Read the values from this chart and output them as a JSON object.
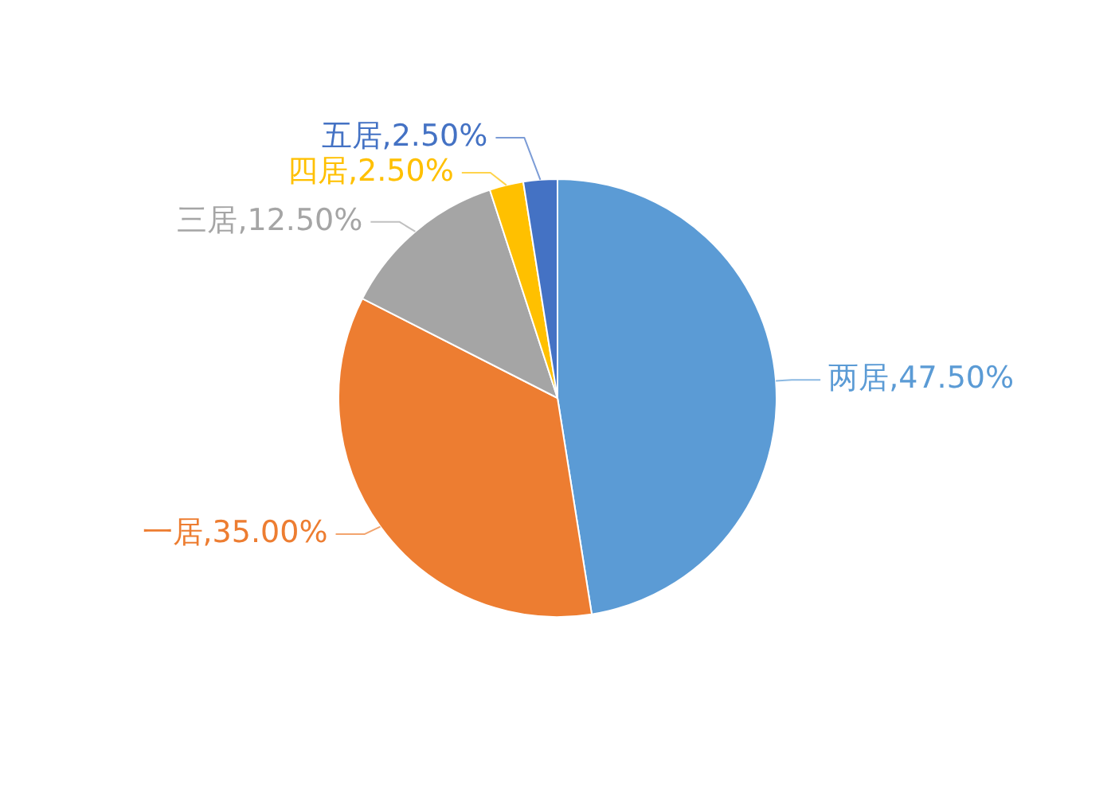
{
  "chart_data": {
    "type": "pie",
    "categories": [
      "两居",
      "一居",
      "三居",
      "四居",
      "五居"
    ],
    "values": [
      47.5,
      35,
      12.5,
      2.5,
      2.5
    ],
    "value_labels": [
      "47.50%",
      "35.00%",
      "12.50%",
      "2.50%",
      "2.50%"
    ],
    "colors": [
      "#5b9bd5",
      "#ed7d31",
      "#a5a5a5",
      "#ffc000",
      "#4472c4"
    ],
    "legend": false
  }
}
